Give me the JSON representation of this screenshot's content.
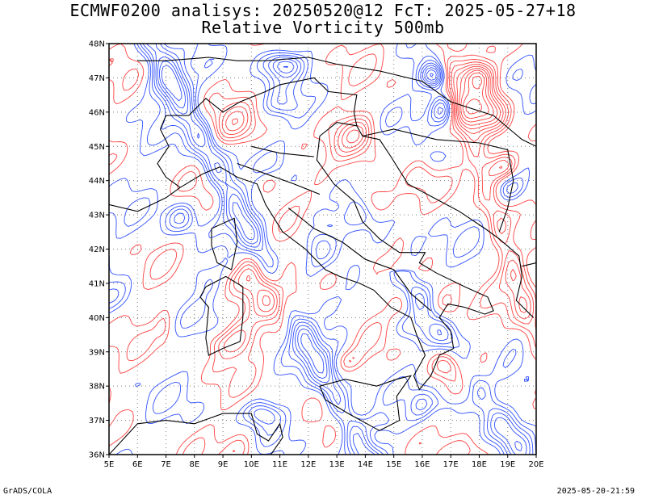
{
  "header": {
    "title_line1": "ECMWF0200 analisys: 20250520@12 FcT: 2025-05-27+18",
    "title_line2": "Relative Vorticity 500mb"
  },
  "map": {
    "lon_ticks": [
      "5E",
      "6E",
      "7E",
      "8E",
      "9E",
      "10E",
      "11E",
      "12E",
      "13E",
      "14E",
      "15E",
      "16E",
      "17E",
      "18E",
      "19E",
      "20E"
    ],
    "lat_ticks": [
      "36N",
      "37N",
      "38N",
      "39N",
      "40N",
      "41N",
      "42N",
      "43N",
      "44N",
      "45N",
      "46N",
      "47N",
      "48N"
    ],
    "colors": {
      "positive_contour": "#ff4040",
      "negative_contour": "#3050ff",
      "coastline": "#000000",
      "grid": "#808080"
    },
    "grid": "dotted"
  },
  "footer": {
    "left": "GrADS/COLA",
    "right": "2025-05-20-21:59"
  }
}
